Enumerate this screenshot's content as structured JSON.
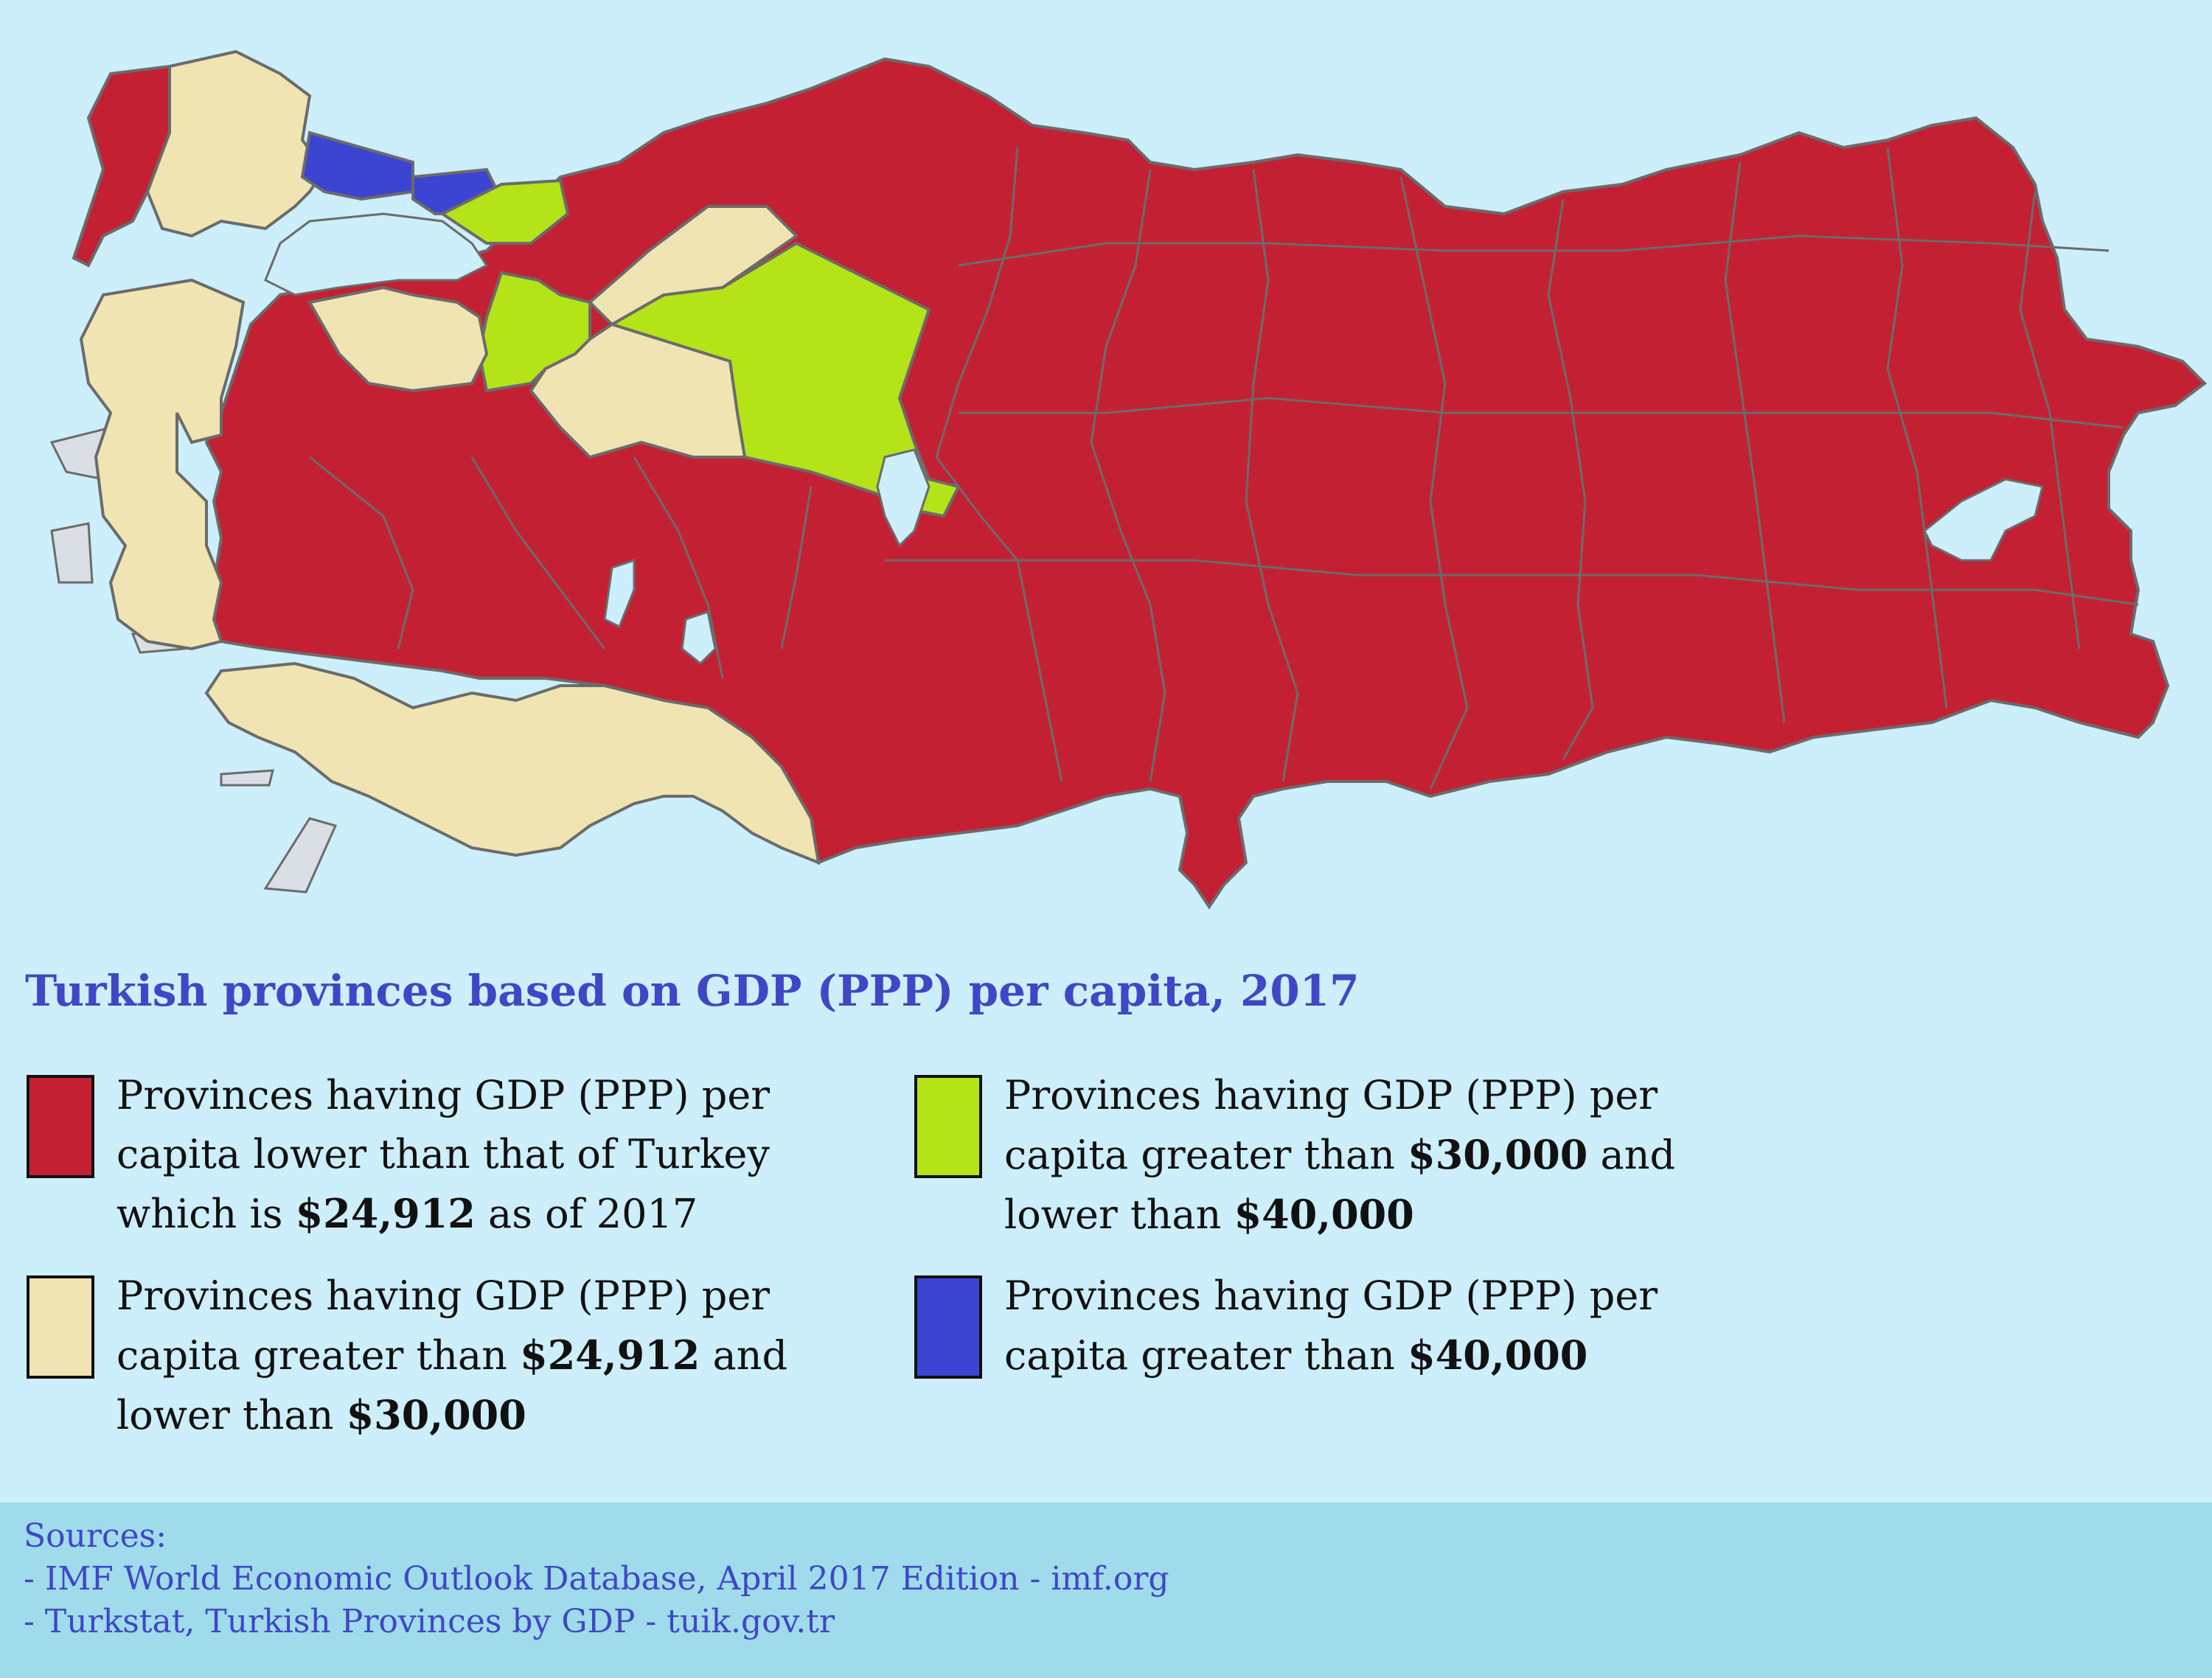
{
  "title": "Turkish provinces based on GDP (PPP) per capita, 2017",
  "colors": {
    "sea": "#cdeefb",
    "border": "#6b6b6b",
    "low": "#c42034",
    "mid": "#f0e4b2",
    "high": "#b4e418",
    "top": "#3c44d2",
    "foreign": "#dadfe6",
    "sources_band": "#9fdbeb"
  },
  "legend": [
    {
      "category": "low",
      "color": "#c42034",
      "lines": [
        [
          {
            "t": "Provinces having GDP (PPP) per"
          }
        ],
        [
          {
            "t": "capita lower than that of Turkey"
          }
        ],
        [
          {
            "t": "which is "
          },
          {
            "t": "$24,912",
            "b": true
          },
          {
            "t": " as of 2017"
          }
        ]
      ]
    },
    {
      "category": "high",
      "color": "#b4e418",
      "lines": [
        [
          {
            "t": "Provinces having GDP (PPP) per"
          }
        ],
        [
          {
            "t": "capita greater than "
          },
          {
            "t": "$30,000",
            "b": true
          },
          {
            "t": " and"
          }
        ],
        [
          {
            "t": "lower than "
          },
          {
            "t": "$40,000",
            "b": true
          }
        ]
      ]
    },
    {
      "category": "mid",
      "color": "#f0e4b2",
      "lines": [
        [
          {
            "t": "Provinces having GDP (PPP) per"
          }
        ],
        [
          {
            "t": "capita greater than "
          },
          {
            "t": "$24,912",
            "b": true
          },
          {
            "t": " and"
          }
        ],
        [
          {
            "t": "lower than "
          },
          {
            "t": "$30,000",
            "b": true
          }
        ]
      ]
    },
    {
      "category": "top",
      "color": "#3c44d2",
      "lines": [
        [
          {
            "t": "Provinces having GDP (PPP) per"
          }
        ],
        [
          {
            "t": "capita greater than "
          },
          {
            "t": "$40,000",
            "b": true
          }
        ]
      ]
    }
  ],
  "sources": {
    "heading": "Sources:",
    "items": [
      "- IMF World Economic Outlook Database, April 2017 Edition - imf.org",
      "- Turkstat, Turkish Provinces by GDP - tuik.gov.tr"
    ]
  },
  "map_regions": [
    {
      "name": "istanbul-region",
      "category": "top"
    },
    {
      "name": "kocaeli-region",
      "category": "top"
    },
    {
      "name": "bursa-region",
      "category": "high"
    },
    {
      "name": "ankara-region",
      "category": "high"
    },
    {
      "name": "thrace-west",
      "category": "low"
    },
    {
      "name": "thrace-central",
      "category": "mid"
    },
    {
      "name": "aegean-coast",
      "category": "mid"
    },
    {
      "name": "antalya-mugla-coast",
      "category": "mid"
    },
    {
      "name": "eskisehir-region",
      "category": "mid"
    },
    {
      "name": "bolu-region",
      "category": "mid"
    },
    {
      "name": "central-east-turkey",
      "category": "low"
    },
    {
      "name": "western-interior",
      "category": "low"
    }
  ]
}
